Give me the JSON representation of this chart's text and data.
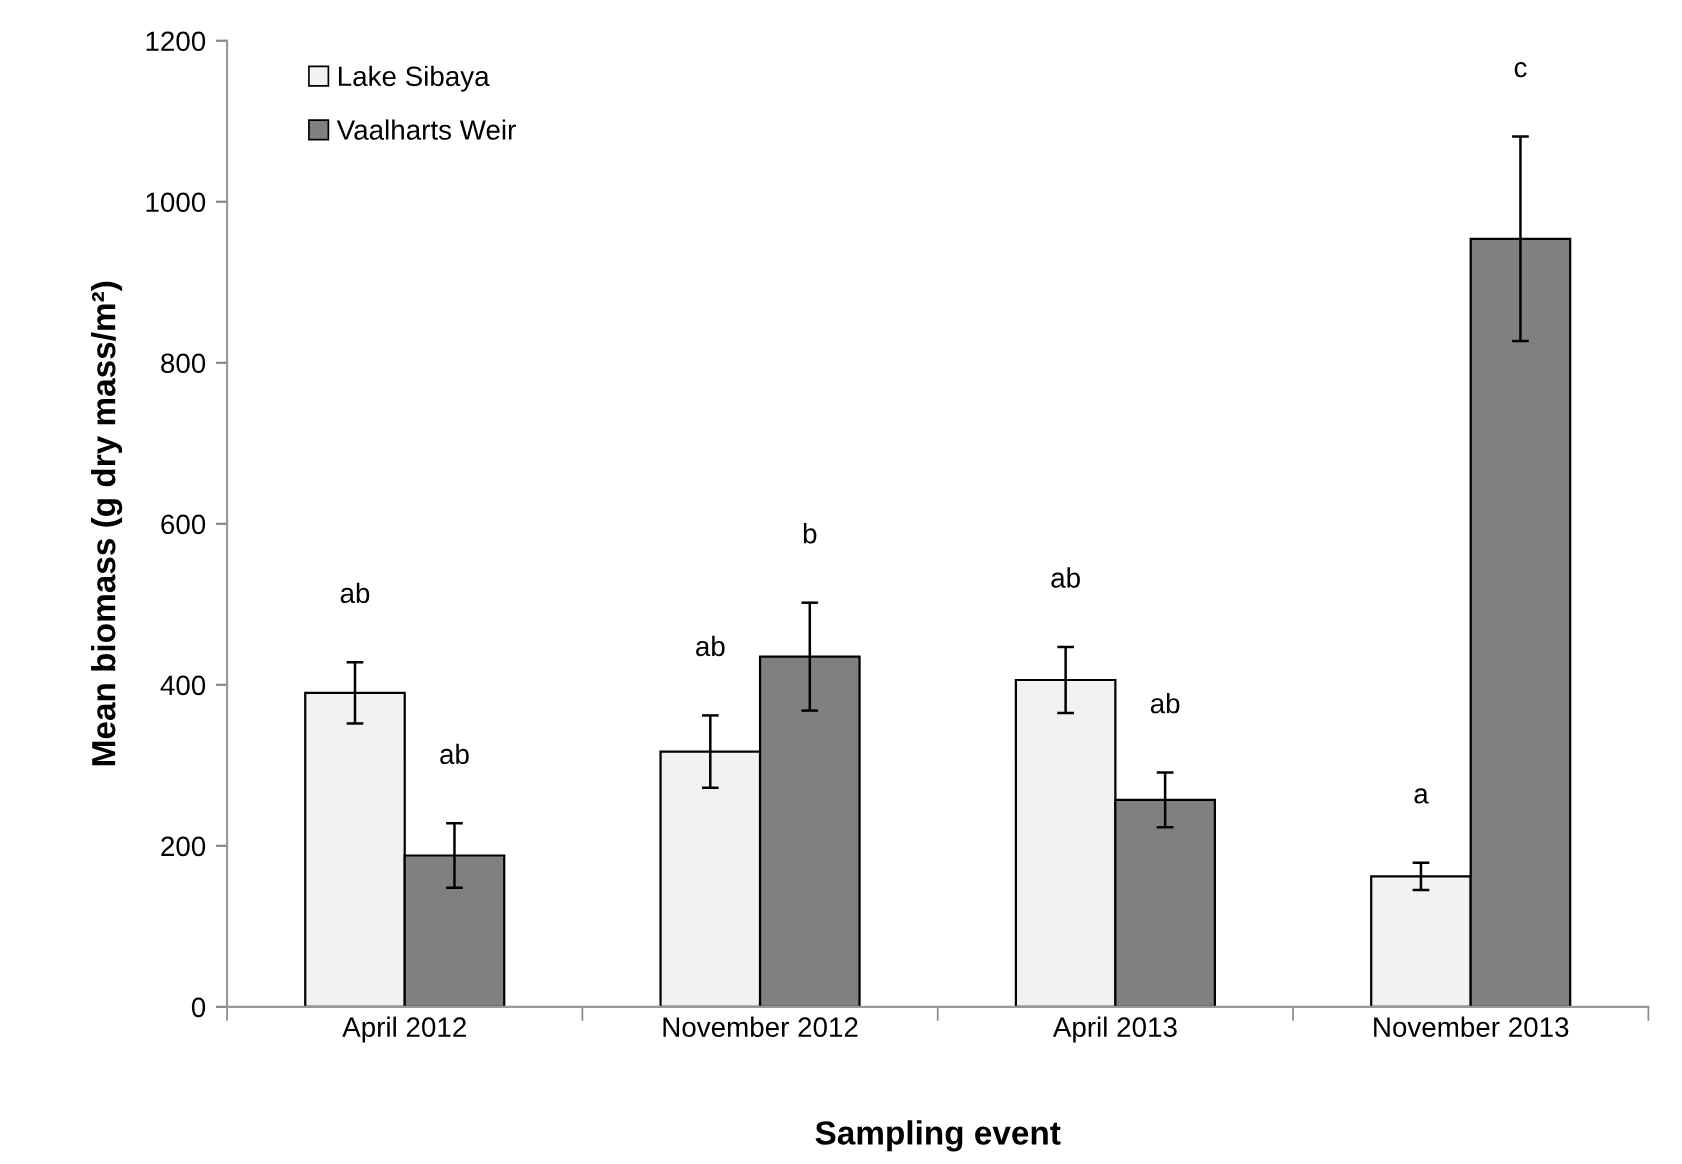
{
  "chart_data": {
    "type": "bar",
    "xlabel": "Sampling event",
    "ylabel": "Mean biomass (g dry mass/m²)",
    "categories": [
      "April 2012",
      "November 2012",
      "April 2013",
      "November 2013"
    ],
    "series": [
      {
        "name": "Lake Sibaya",
        "color": "#f2f2f2",
        "values": [
          390,
          317,
          406,
          162
        ],
        "errors": [
          38,
          45,
          41,
          17
        ]
      },
      {
        "name": "Vaalharts Weir",
        "color": "#808080",
        "values": [
          188,
          435,
          257,
          954
        ],
        "errors": [
          40,
          67,
          34,
          127
        ]
      }
    ],
    "ylim": [
      0,
      1200
    ],
    "yticks": [
      0,
      200,
      400,
      600,
      800,
      1000,
      1200
    ],
    "grid": false,
    "legend": "top left",
    "annotations": [
      "ab",
      "ab",
      "ab",
      "b",
      "ab",
      "ab",
      "a",
      "c"
    ]
  }
}
